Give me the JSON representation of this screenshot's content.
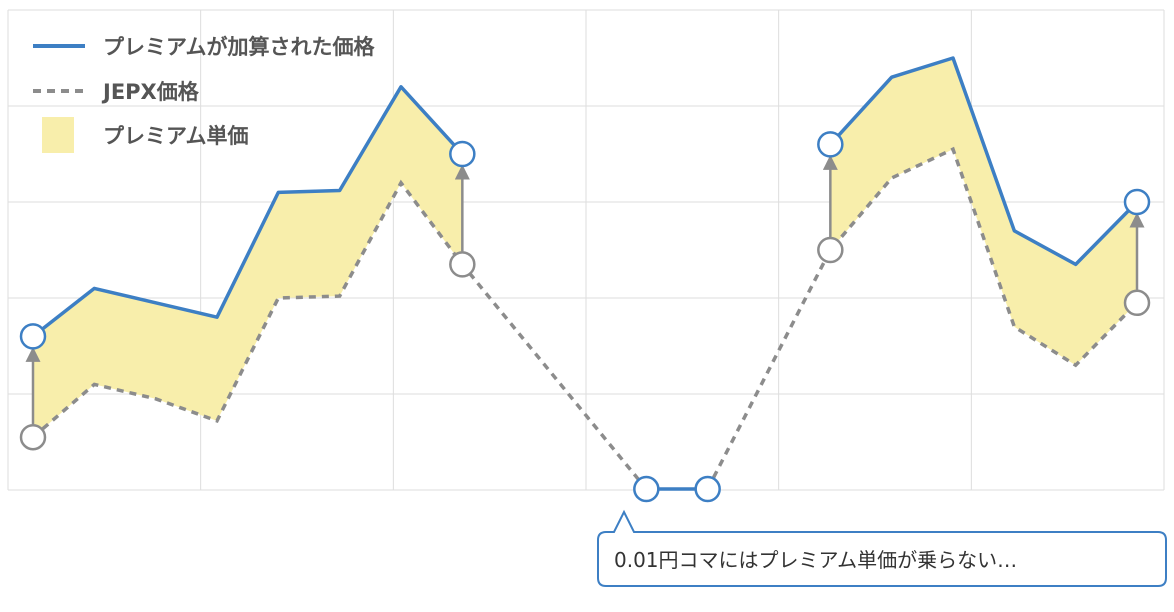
{
  "legend": {
    "premium_price_label": "プレミアムが加算された価格",
    "jepx_label": "JEPX価格",
    "premium_unit_label": "プレミアム単価"
  },
  "callout": {
    "text": "0.01円コマにはプレミアム単価が乗らない…"
  },
  "colors": {
    "premium_line": "#3d7fc4",
    "jepx_line": "#8c8c8c",
    "premium_fill": "#f8eeab",
    "grid": "#dddddd",
    "callout_border": "#3d7fc4"
  },
  "chart_data": {
    "type": "line",
    "x": [
      1,
      2,
      3,
      4,
      5,
      6,
      7,
      8,
      9,
      10,
      11,
      12,
      13,
      14,
      15,
      16,
      17,
      18,
      19
    ],
    "ylim": [
      0,
      5
    ],
    "grid": true,
    "legend_position": "top-left",
    "series": [
      {
        "name": "プレミアムが加算された価格",
        "style": "solid",
        "values": [
          1.6,
          2.1,
          1.95,
          1.8,
          3.1,
          3.12,
          4.2,
          3.5,
          null,
          null,
          0.01,
          0.01,
          null,
          3.6,
          4.3,
          4.5,
          2.7,
          2.35,
          3.0
        ]
      },
      {
        "name": "JEPX価格",
        "style": "dashed",
        "values": [
          0.55,
          1.1,
          0.95,
          0.72,
          2.0,
          2.02,
          3.2,
          2.35,
          null,
          null,
          0.01,
          0.01,
          null,
          2.5,
          3.25,
          3.55,
          1.7,
          1.3,
          1.95
        ]
      }
    ],
    "fill_between": {
      "name": "プレミアム単価",
      "segments": [
        [
          1,
          8
        ],
        [
          14,
          19
        ]
      ]
    },
    "arrows_at_x": [
      1,
      8,
      14,
      19
    ],
    "markers": [
      {
        "series": "プレミアムが加算された価格",
        "x": [
          1,
          8,
          11,
          12,
          14,
          19
        ]
      },
      {
        "series": "JEPX価格",
        "x": [
          1,
          8,
          14,
          19
        ]
      }
    ]
  }
}
